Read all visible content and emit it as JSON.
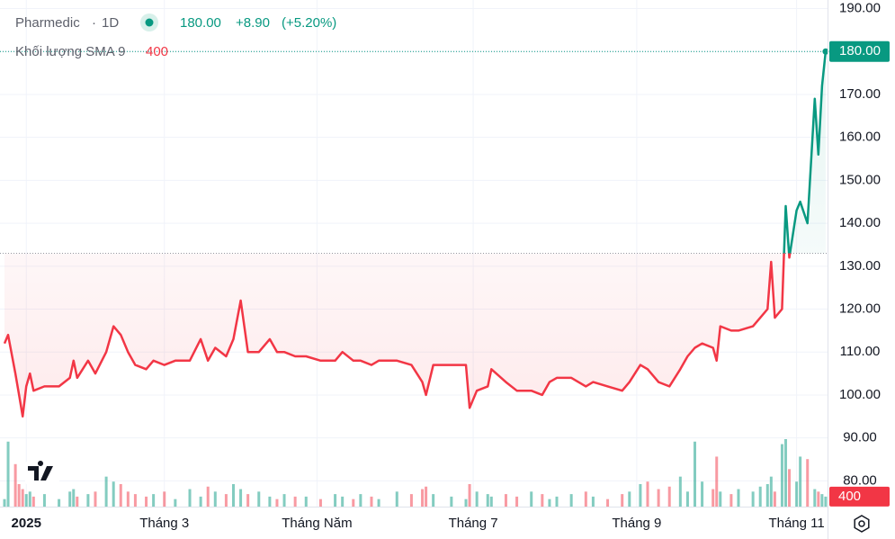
{
  "chart_data": {
    "type": "line",
    "title": "Pharmedic",
    "interval": "1D",
    "change": "+8.90",
    "change_pct": "(+5.20%)",
    "up_color": "#089981",
    "down_color": "#f23645",
    "baseline": 133,
    "grid": true,
    "x": [
      -6,
      -5,
      -3,
      -2,
      -1,
      0,
      1,
      2,
      5,
      9,
      12,
      13,
      14,
      17,
      19,
      22,
      24,
      26,
      28,
      30,
      33,
      35,
      38,
      41,
      45,
      48,
      50,
      52,
      55,
      57,
      59,
      61,
      64,
      67,
      69,
      71,
      74,
      77,
      81,
      85,
      87,
      90,
      92,
      95,
      97,
      102,
      106,
      109,
      110,
      112,
      117,
      121,
      122,
      124,
      127,
      128,
      132,
      135,
      139,
      142,
      144,
      146,
      150,
      154,
      156,
      160,
      164,
      166,
      169,
      171,
      174,
      177,
      180,
      182,
      184,
      186,
      189,
      190,
      191,
      194,
      196,
      200,
      202,
      204,
      205,
      206,
      208,
      209,
      210,
      212,
      213,
      215,
      217,
      218,
      219,
      220
    ],
    "values": [
      112,
      114,
      105,
      100,
      95,
      102,
      105,
      101,
      102,
      102,
      104,
      108,
      104,
      108,
      105,
      110,
      116,
      114,
      110,
      107,
      106,
      108,
      107,
      108,
      108,
      113,
      108,
      111,
      109,
      113,
      122,
      110,
      110,
      113,
      110,
      110,
      109,
      109,
      108,
      108,
      110,
      108,
      108,
      107,
      108,
      108,
      107,
      103,
      100,
      107,
      107,
      107,
      97,
      101,
      102,
      106,
      103,
      101,
      101,
      100,
      103,
      104,
      104,
      102,
      103,
      102,
      101,
      103,
      107,
      106,
      103,
      102,
      106,
      109,
      111,
      112,
      111,
      108,
      116,
      115,
      115,
      116,
      118,
      120,
      131,
      118,
      120,
      144,
      132,
      143,
      145,
      140,
      169,
      156,
      172,
      180
    ],
    "value_labels": [
      null,
      null,
      null,
      null,
      null,
      null,
      null,
      null,
      null,
      null,
      null,
      null,
      null,
      null,
      null,
      null,
      null,
      null,
      null,
      null,
      null,
      null,
      null,
      null,
      null,
      null,
      null,
      null,
      null,
      null,
      null,
      null,
      null,
      null,
      null,
      null,
      null,
      null,
      null,
      null,
      null,
      null,
      null,
      null,
      null,
      null,
      null,
      null,
      null,
      null,
      null,
      null,
      null,
      null,
      null,
      null,
      null,
      null,
      null,
      null,
      null,
      null,
      null,
      null,
      null,
      null,
      null,
      null,
      null,
      null,
      null,
      null,
      null,
      null,
      null,
      null,
      null,
      null,
      null,
      null,
      null,
      null,
      null,
      null,
      null,
      null,
      null,
      null,
      null,
      null,
      null,
      null,
      null,
      null,
      null,
      "180.00"
    ],
    "xlim": [
      -6,
      222
    ],
    "xticks": [
      {
        "value": 0,
        "label": "2025"
      },
      {
        "value": 38,
        "label": "Tháng 3"
      },
      {
        "value": 80,
        "label": "Tháng Năm"
      },
      {
        "value": 123,
        "label": "Tháng 7"
      },
      {
        "value": 168,
        "label": "Tháng 9"
      },
      {
        "value": 212,
        "label": "Tháng 11"
      }
    ],
    "ylim": [
      74,
      192
    ],
    "yticks": [
      {
        "value": 80,
        "label": "80.00"
      },
      {
        "value": 90,
        "label": "90.00"
      },
      {
        "value": 100,
        "label": "100.00"
      },
      {
        "value": 110,
        "label": "110.00"
      },
      {
        "value": 120,
        "label": "120.00"
      },
      {
        "value": 130,
        "label": "130.00"
      },
      {
        "value": 140,
        "label": "140.00"
      },
      {
        "value": 150,
        "label": "150.00"
      },
      {
        "value": 160,
        "label": "160.00"
      },
      {
        "value": 170,
        "label": "170.00"
      },
      {
        "value": 180,
        "label": "180.00"
      },
      {
        "value": 190,
        "label": "190.00"
      }
    ],
    "volume": {
      "name": "Khối lượng SMA 9",
      "ylim": [
        0,
        3600
      ],
      "values": [
        300,
        2600,
        1700,
        900,
        700,
        500,
        600,
        400,
        500,
        300,
        600,
        700,
        400,
        500,
        600,
        1200,
        1000,
        900,
        600,
        500,
        400,
        500,
        600,
        300,
        700,
        400,
        800,
        600,
        500,
        900,
        700,
        500,
        600,
        400,
        300,
        500,
        400,
        400,
        300,
        500,
        400,
        300,
        500,
        400,
        300,
        600,
        500,
        700,
        800,
        500,
        400,
        300,
        900,
        600,
        500,
        400,
        500,
        400,
        600,
        500,
        300,
        400,
        500,
        600,
        400,
        300,
        500,
        600,
        900,
        1000,
        700,
        800,
        1200,
        600,
        2600,
        1000,
        700,
        2000,
        600,
        500,
        700,
        600,
        800,
        900,
        1200,
        600,
        2500,
        2700,
        1500,
        1000,
        2000,
        1900,
        700,
        600,
        500,
        400
      ]
    }
  }
}
